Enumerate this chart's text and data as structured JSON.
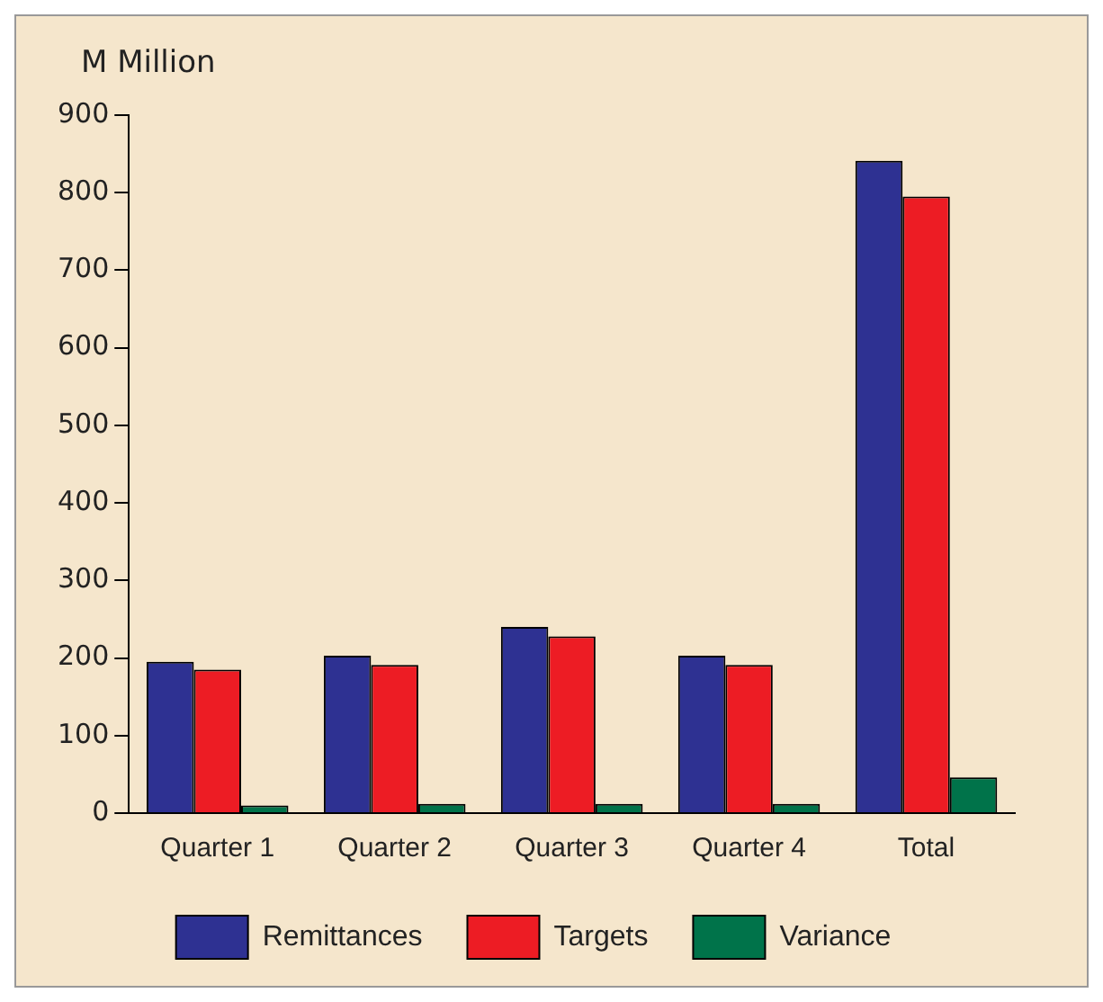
{
  "chart_data": {
    "type": "bar",
    "ylabel": "M Million",
    "categories": [
      "Quarter 1",
      "Quarter 2",
      "Quarter 3",
      "Quarter 4",
      "Total"
    ],
    "series": [
      {
        "name": "Remittances",
        "color": "#2e3192",
        "values": [
          195,
          203,
          240,
          203,
          841
        ]
      },
      {
        "name": "Targets",
        "color": "#ed1c24",
        "values": [
          185,
          191,
          228,
          191,
          795
        ]
      },
      {
        "name": "Variance",
        "color": "#00734a",
        "values": [
          10,
          12,
          12,
          12,
          46
        ]
      }
    ],
    "ylim": [
      0,
      900
    ],
    "yticks": [
      0,
      100,
      200,
      300,
      400,
      500,
      600,
      700,
      800,
      900
    ],
    "grid": false,
    "legend": "bottom"
  }
}
